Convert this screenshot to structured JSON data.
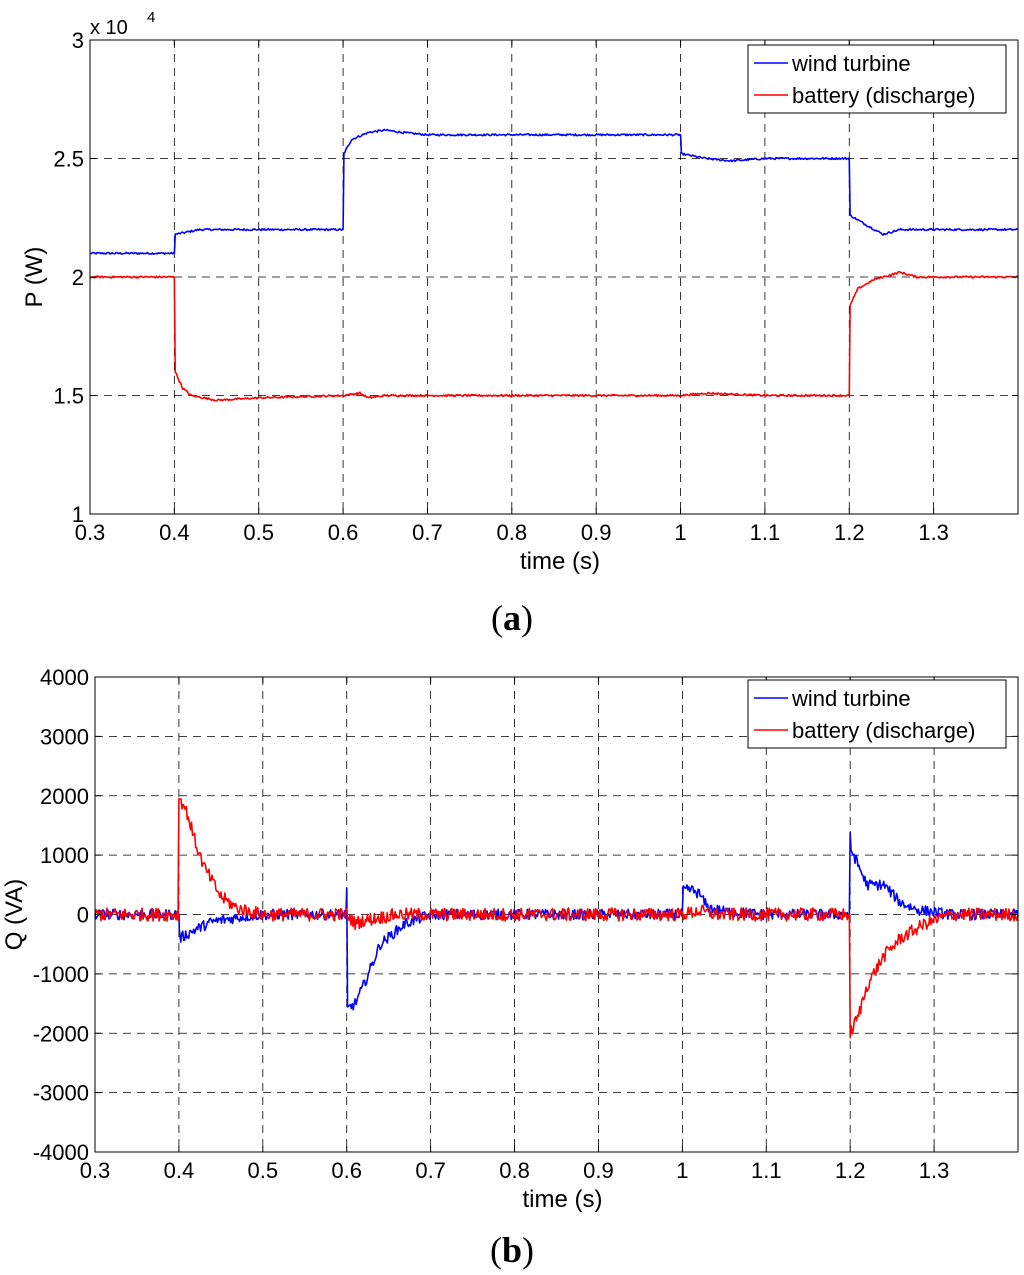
{
  "chart_data": [
    {
      "type": "line",
      "panel": "(a)",
      "caption_letter": "a",
      "ylabel": "P (W)",
      "xlabel": "time (s)",
      "y_multiplier": "x 10",
      "y_multiplier_exp": "4",
      "xlim": [
        0.3,
        1.4
      ],
      "ylim": [
        1.0,
        3.0
      ],
      "xticks": [
        0.3,
        0.4,
        0.5,
        0.6,
        0.7,
        0.8,
        0.9,
        1.0,
        1.1,
        1.2,
        1.3
      ],
      "xtick_labels": [
        "0.3",
        "0.4",
        "0.5",
        "0.6",
        "0.7",
        "0.8",
        "0.9",
        "1",
        "1.1",
        "1.2",
        "1.3"
      ],
      "yticks": [
        1.0,
        1.5,
        2.0,
        2.5,
        3.0
      ],
      "ytick_labels": [
        "1",
        "1.5",
        "2",
        "2.5",
        "3"
      ],
      "grid": true,
      "legend_position": "top-right",
      "series": [
        {
          "name": "wind turbine",
          "color": "#0000ff",
          "noise": 0.004,
          "x": [
            0.3,
            0.399,
            0.4,
            0.401,
            0.43,
            0.45,
            0.599,
            0.6,
            0.601,
            0.61,
            0.63,
            0.65,
            0.67,
            0.7,
            0.999,
            1.0,
            1.001,
            1.03,
            1.06,
            1.1,
            1.199,
            1.2,
            1.201,
            1.22,
            1.24,
            1.26,
            1.3,
            1.4
          ],
          "y": [
            2.1,
            2.1,
            2.1,
            2.18,
            2.2,
            2.2,
            2.2,
            2.2,
            2.52,
            2.58,
            2.61,
            2.62,
            2.61,
            2.6,
            2.6,
            2.6,
            2.52,
            2.5,
            2.49,
            2.5,
            2.5,
            2.5,
            2.26,
            2.22,
            2.18,
            2.2,
            2.2,
            2.2
          ]
        },
        {
          "name": "battery (discharge)",
          "color": "#ff0000",
          "noise": 0.004,
          "x": [
            0.3,
            0.399,
            0.4,
            0.401,
            0.41,
            0.42,
            0.45,
            0.5,
            0.6,
            0.62,
            0.63,
            0.65,
            1.0,
            1.03,
            1.1,
            1.199,
            1.2,
            1.201,
            1.21,
            1.23,
            1.26,
            1.28,
            1.3,
            1.4
          ],
          "y": [
            2.0,
            2.0,
            2.0,
            1.6,
            1.53,
            1.5,
            1.48,
            1.49,
            1.5,
            1.51,
            1.49,
            1.5,
            1.5,
            1.51,
            1.5,
            1.5,
            1.5,
            1.88,
            1.95,
            1.99,
            2.02,
            2.0,
            2.0,
            2.0
          ]
        }
      ]
    },
    {
      "type": "line",
      "panel": "(b)",
      "caption_letter": "b",
      "ylabel": "Q (VA)",
      "xlabel": "time (s)",
      "xlim": [
        0.3,
        1.4
      ],
      "ylim": [
        -4000,
        4000
      ],
      "xticks": [
        0.3,
        0.4,
        0.5,
        0.6,
        0.7,
        0.8,
        0.9,
        1.0,
        1.1,
        1.2,
        1.3
      ],
      "xtick_labels": [
        "0.3",
        "0.4",
        "0.5",
        "0.6",
        "0.7",
        "0.8",
        "0.9",
        "1",
        "1.1",
        "1.2",
        "1.3"
      ],
      "yticks": [
        -4000,
        -3000,
        -2000,
        -1000,
        0,
        1000,
        2000,
        3000,
        4000
      ],
      "ytick_labels": [
        "-4000",
        "-3000",
        "-2000",
        "-1000",
        "0",
        "1000",
        "2000",
        "3000",
        "4000"
      ],
      "grid": true,
      "legend_position": "top-right",
      "series": [
        {
          "name": "wind turbine",
          "color": "#0000ff",
          "noise": 90,
          "x": [
            0.3,
            0.399,
            0.4,
            0.401,
            0.42,
            0.44,
            0.47,
            0.5,
            0.599,
            0.6,
            0.601,
            0.61,
            0.62,
            0.64,
            0.67,
            0.7,
            0.999,
            1.0,
            1.001,
            1.01,
            1.02,
            1.03,
            1.05,
            1.1,
            1.199,
            1.2,
            1.201,
            1.22,
            1.24,
            1.26,
            1.28,
            1.32,
            1.4
          ],
          "y": [
            0,
            0,
            0,
            -400,
            -250,
            -120,
            -50,
            0,
            0,
            400,
            -1600,
            -1500,
            -1200,
            -500,
            -150,
            0,
            0,
            0,
            400,
            420,
            350,
            120,
            50,
            0,
            0,
            1300,
            1100,
            500,
            500,
            200,
            80,
            0,
            0
          ],
          "spikes": [
            [
              0.6,
              450
            ],
            [
              1.2,
              1300
            ]
          ]
        },
        {
          "name": "battery (discharge)",
          "color": "#ff0000",
          "noise": 110,
          "x": [
            0.3,
            0.399,
            0.4,
            0.41,
            0.42,
            0.43,
            0.45,
            0.47,
            0.5,
            0.6,
            0.61,
            0.62,
            0.64,
            0.66,
            0.7,
            1.0,
            1.02,
            1.04,
            1.1,
            1.199,
            1.2,
            1.21,
            1.22,
            1.24,
            1.26,
            1.29,
            1.32,
            1.4
          ],
          "y": [
            0,
            0,
            2000,
            1700,
            1200,
            800,
            300,
            100,
            0,
            0,
            -150,
            -100,
            -50,
            0,
            0,
            0,
            60,
            0,
            0,
            0,
            -2000,
            -1700,
            -1200,
            -700,
            -400,
            -150,
            0,
            0
          ]
        }
      ]
    }
  ]
}
